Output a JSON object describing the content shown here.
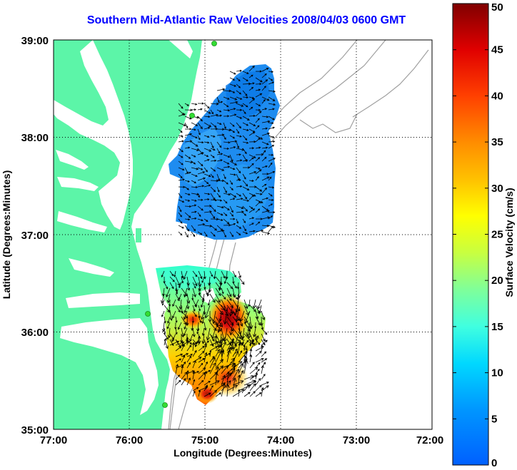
{
  "title": "Southern Mid-Atlantic Raw Velocities 2008/04/03 0600 GMT",
  "map": {
    "xlabel": "Longitude (Degrees:Minutes)",
    "ylabel": "Latitude (Degrees:Minutes)",
    "lon_ticks": [
      "77:00",
      "76:00",
      "75:00",
      "74:00",
      "73:00",
      "72:00"
    ],
    "lat_ticks": [
      "39:00",
      "38:00",
      "37:00",
      "36:00",
      "35:00"
    ],
    "lon_range": [
      -77,
      -72
    ],
    "lat_range": [
      35,
      39
    ],
    "grid": "dotted",
    "land_color": "#5cf5a8",
    "station_color": "#33dd33"
  },
  "colorbar": {
    "label": "Surface Velocity (cm/s)",
    "ticks": [
      "0",
      "5",
      "10",
      "15",
      "20",
      "25",
      "30",
      "35",
      "40",
      "45",
      "50"
    ],
    "range": [
      0,
      50
    ],
    "colormap": "jet"
  }
}
